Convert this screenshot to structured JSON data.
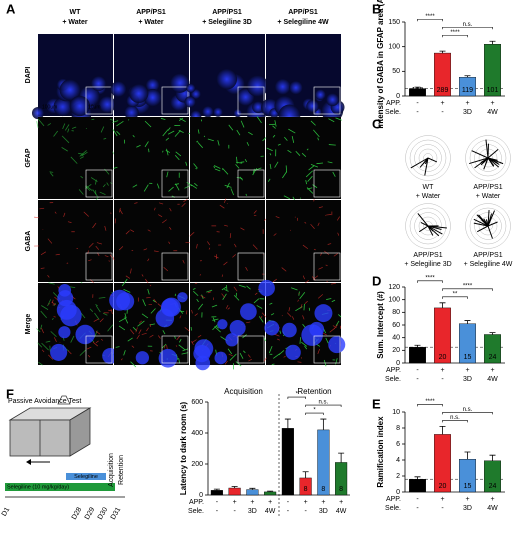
{
  "panel_letters": [
    "A",
    "B",
    "C",
    "D",
    "E",
    "F"
  ],
  "panel_a": {
    "columns": [
      {
        "line1": "WT",
        "line2": "+ Water"
      },
      {
        "line1": "APP/PS1",
        "line2": "+ Water"
      },
      {
        "line1": "APP/PS1",
        "line2": "+ Selegiline 3D"
      },
      {
        "line1": "APP/PS1",
        "line2": "+ Selegiline 4W"
      }
    ],
    "rows": [
      "DAPI",
      "GFAP",
      "GABA",
      "Merge"
    ],
    "scale_bars": [
      "100um",
      "10um"
    ]
  },
  "panel_c": {
    "labels": [
      {
        "line1": "WT",
        "line2": "+ Water"
      },
      {
        "line1": "APP/PS1",
        "line2": "+ Water"
      },
      {
        "line1": "APP/PS1",
        "line2": "+ Selegiline 3D"
      },
      {
        "line1": "APP/PS1",
        "line2": "+ Selegiline 4W"
      }
    ]
  },
  "panel_f": {
    "title": "Passive Avoidance Test",
    "drug_short": "Selegiline",
    "drug_long": "Selegiline (10 mg/kg/day)",
    "phases": [
      "Acquisition",
      "Retention"
    ],
    "days": [
      "D1",
      "D28",
      "D29",
      "D30",
      "D31"
    ]
  },
  "chart_data": [
    {
      "type": "bar",
      "y_label": "Intensity of GABA in GFAP area (AU)",
      "ylim": [
        0,
        150
      ],
      "yticks": [
        0,
        50,
        100,
        150
      ],
      "colors": [
        "#000000",
        "#e8262b",
        "#4a90d9",
        "#1f7a2c"
      ],
      "values": [
        15,
        87,
        38,
        105
      ],
      "errors": [
        3,
        4,
        3,
        6
      ],
      "n_labels": [
        180,
        289,
        119,
        101
      ],
      "significance": [
        "****",
        "****",
        "n.s."
      ],
      "condition_rows": [
        {
          "label": "APP.",
          "values": [
            "-",
            "+",
            "+",
            "+"
          ]
        },
        {
          "label": "Sele.",
          "values": [
            "-",
            "-",
            "3D",
            "4W"
          ]
        }
      ]
    },
    {
      "type": "bar",
      "y_label": "Sum. Intercept (#)",
      "ylim": [
        0,
        120
      ],
      "yticks": [
        0,
        20,
        40,
        60,
        80,
        100,
        120
      ],
      "colors": [
        "#000000",
        "#e8262b",
        "#4a90d9",
        "#1f7a2c"
      ],
      "values": [
        25,
        87,
        62,
        45
      ],
      "errors": [
        3,
        8,
        5,
        3
      ],
      "n_labels": [
        15,
        20,
        15,
        24
      ],
      "significance": [
        "****",
        "**",
        "****"
      ],
      "condition_rows": [
        {
          "label": "APP.",
          "values": [
            "-",
            "+",
            "+",
            "+"
          ]
        },
        {
          "label": "Sele.",
          "values": [
            "-",
            "-",
            "3D",
            "4W"
          ]
        }
      ]
    },
    {
      "type": "bar",
      "y_label": "Ramification index",
      "ylim": [
        0,
        10
      ],
      "yticks": [
        0,
        2,
        4,
        6,
        8,
        10
      ],
      "colors": [
        "#000000",
        "#e8262b",
        "#4a90d9",
        "#1f7a2c"
      ],
      "values": [
        1.6,
        7.2,
        4.1,
        3.9
      ],
      "errors": [
        0.3,
        1.0,
        0.9,
        0.7
      ],
      "n_labels": [
        15,
        20,
        15,
        24
      ],
      "significance": [
        "****",
        "n.s.",
        "n.s."
      ],
      "condition_rows": [
        {
          "label": "APP.",
          "values": [
            "-",
            "+",
            "+",
            "+"
          ]
        },
        {
          "label": "Sele.",
          "values": [
            "-",
            "-",
            "3D",
            "4W"
          ]
        }
      ]
    },
    {
      "type": "bar",
      "y_label": "Latency to dark room (s)",
      "ylim": [
        0,
        600
      ],
      "yticks": [
        0,
        200,
        400,
        600
      ],
      "colors": [
        "#000000",
        "#e8262b",
        "#4a90d9",
        "#1f7a2c"
      ],
      "groups": [
        {
          "title": "Acquisition",
          "values": [
            30,
            45,
            35,
            20
          ],
          "errors": [
            8,
            10,
            8,
            5
          ]
        },
        {
          "title": "Retention",
          "values": [
            430,
            110,
            420,
            210
          ],
          "errors": [
            60,
            40,
            70,
            60
          ],
          "n_labels": [
            9,
            8,
            8,
            8
          ],
          "significance": [
            "*",
            "*",
            "n.s."
          ]
        }
      ],
      "condition_rows": [
        {
          "label": "APP.",
          "values": [
            "-",
            "+",
            "+",
            "+"
          ]
        },
        {
          "label": "Sele.",
          "values": [
            "-",
            "-",
            "3D",
            "4W"
          ]
        }
      ]
    }
  ]
}
